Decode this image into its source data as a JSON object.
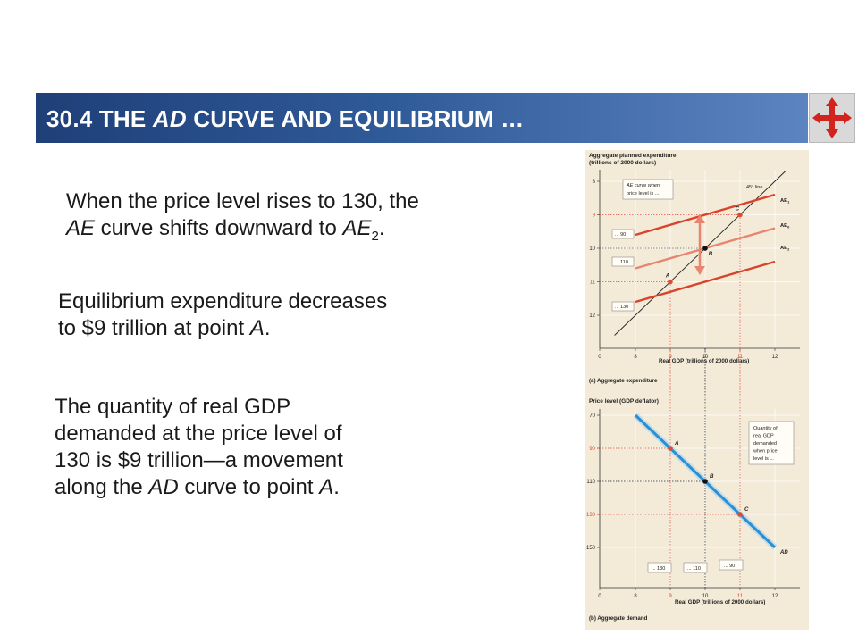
{
  "slide": {
    "title_prefix": "30.4 THE ",
    "title_italic": "AD",
    "title_suffix": " CURVE AND EQUILIBRIUM …",
    "nav_icon": "four-way-arrow-icon",
    "banner_color_start": "#1f3f78",
    "banner_color_end": "#5b84c0"
  },
  "para1": {
    "line1": "When the price level rises to 130, the",
    "ae": "AE",
    "mid": " curve shifts downward to ",
    "ae2": "AE",
    "sub": "2",
    "end": "."
  },
  "para2": {
    "line1": "Equilibrium expenditure decreases",
    "line2_start": "to $9 trillion at point ",
    "point": "A",
    "end": "."
  },
  "para3": {
    "line1": "The quantity of real GDP",
    "line2": "demanded at the price level of",
    "line3": "130 is $9 trillion—a movement",
    "line4_start": "along the ",
    "ad": "AD",
    "line4_end": " curve to point ",
    "point": "A",
    "end": "."
  },
  "figure": {
    "top": {
      "ylabel_line1": "Aggregate planned expenditure",
      "ylabel_line2": "(trillions of 2000 dollars)",
      "xlabel": "Real GDP (trillions of 2000 dollars)",
      "caption": "(a) Aggregate expenditure",
      "y_ticks": [
        "12",
        "11",
        "10",
        "9",
        "8"
      ],
      "x_ticks": [
        "0",
        "8",
        "9",
        "10",
        "11",
        "12"
      ],
      "callout_line1": "AE curve when",
      "callout_line2": "price level is ...",
      "line45": "45° line",
      "ae_labels": [
        "AE",
        "AE",
        "AE"
      ],
      "ae_subs": [
        "1",
        "0",
        "2"
      ],
      "level_boxes": [
        "... 90",
        "... 110",
        "... 130"
      ],
      "points": [
        "A",
        "B",
        "C"
      ]
    },
    "bottom": {
      "ylabel": "Price level (GDP deflator)",
      "xlabel": "Real GDP (trillions of 2000 dollars)",
      "caption": "(b) Aggregate demand",
      "y_ticks": [
        "150",
        "130",
        "110",
        "90",
        "70"
      ],
      "x_ticks": [
        "0",
        "8",
        "9",
        "10",
        "11",
        "12"
      ],
      "callout_lines": [
        "Quantity of",
        "real GDP",
        "demanded",
        "when price",
        "level is ..."
      ],
      "level_boxes": [
        "... 130",
        "... 110",
        "... 90"
      ],
      "curve_label": "AD",
      "points": [
        "A",
        "B",
        "C"
      ]
    },
    "colors": {
      "background": "#f3ebd8",
      "ae_dark": "#d9432b",
      "ae_light": "#e8846f",
      "ad_blue": "#2b8fd3",
      "dot_red": "#e04a2e",
      "arrow": "#e8846f"
    }
  },
  "chart_data": [
    {
      "type": "line",
      "title": "(a) Aggregate expenditure",
      "xlabel": "Real GDP (trillions of 2000 dollars)",
      "ylabel": "Aggregate planned expenditure (trillions of 2000 dollars)",
      "xlim": [
        0,
        12
      ],
      "ylim": [
        0,
        12
      ],
      "x_ticks": [
        0,
        8,
        9,
        10,
        11,
        12
      ],
      "y_ticks": [
        8,
        9,
        10,
        11,
        12
      ],
      "series": [
        {
          "name": "45° line",
          "x": [
            8,
            12
          ],
          "y": [
            8,
            12
          ]
        },
        {
          "name": "AE1",
          "x": [
            8,
            12
          ],
          "y": [
            10.4,
            11.6
          ]
        },
        {
          "name": "AE0",
          "x": [
            8,
            12
          ],
          "y": [
            9.4,
            10.6
          ]
        },
        {
          "name": "AE2",
          "x": [
            8,
            12
          ],
          "y": [
            8.4,
            9.6
          ]
        }
      ],
      "points": [
        {
          "label": "A",
          "x": 9,
          "y": 9
        },
        {
          "label": "B",
          "x": 10,
          "y": 10
        },
        {
          "label": "C",
          "x": 11,
          "y": 11
        }
      ]
    },
    {
      "type": "line",
      "title": "(b) Aggregate demand",
      "xlabel": "Real GDP (trillions of 2000 dollars)",
      "ylabel": "Price level (GDP deflator)",
      "xlim": [
        0,
        12
      ],
      "ylim": [
        70,
        150
      ],
      "x_ticks": [
        0,
        8,
        9,
        10,
        11,
        12
      ],
      "y_ticks": [
        70,
        90,
        110,
        130,
        150
      ],
      "series": [
        {
          "name": "AD",
          "x": [
            8,
            12
          ],
          "y": [
            150,
            70
          ]
        }
      ],
      "points": [
        {
          "label": "A",
          "x": 9,
          "y": 130
        },
        {
          "label": "B",
          "x": 10,
          "y": 110
        },
        {
          "label": "C",
          "x": 11,
          "y": 90
        }
      ]
    }
  ]
}
